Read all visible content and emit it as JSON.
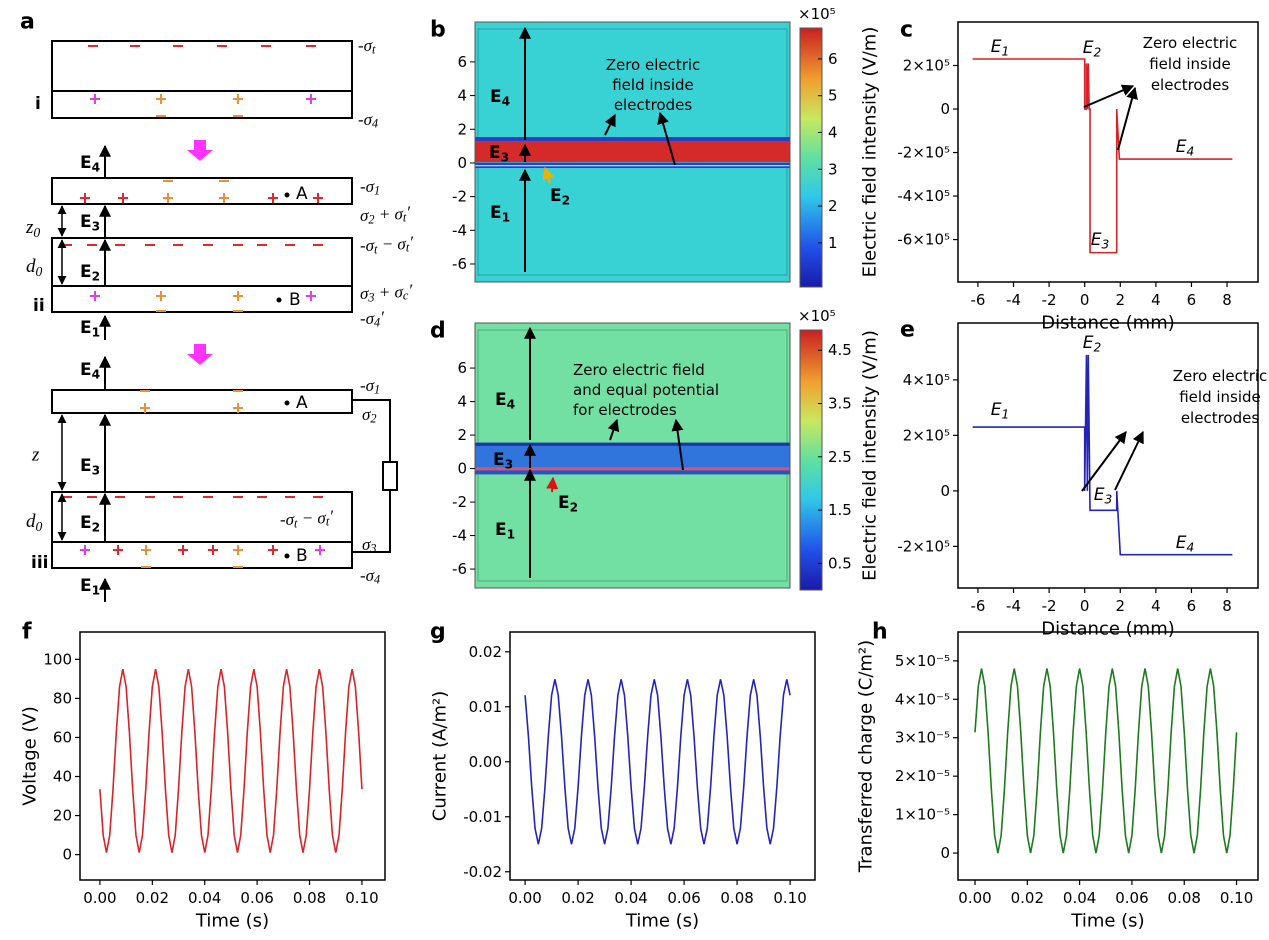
{
  "diagram": {
    "label": "a",
    "steps": [
      "i",
      "ii",
      "iii"
    ],
    "texts": [
      [
        "-σ",
        {
          "sub": "t"
        }
      ],
      [
        "-σ",
        {
          "sub": "4"
        }
      ],
      [
        "E",
        {
          "sub": "4"
        }
      ],
      [
        "-σ",
        {
          "sub": "1"
        }
      ],
      "A",
      [
        "σ",
        {
          "sub": "2"
        },
        " + σ",
        {
          "sub": "t"
        },
        "′"
      ],
      [
        "z",
        {
          "sub": "0"
        }
      ],
      [
        "E",
        {
          "sub": "3"
        }
      ],
      [
        "-σ",
        {
          "sub": "t"
        },
        " − σ",
        {
          "sub": "t"
        },
        "′"
      ],
      [
        "d",
        {
          "sub": "0"
        }
      ],
      [
        "E",
        {
          "sub": "2"
        }
      ],
      [
        "σ",
        {
          "sub": "3"
        },
        " + σ",
        {
          "sub": "c"
        },
        "′"
      ],
      "B",
      [
        "-σ",
        {
          "sub": "4"
        },
        "′"
      ],
      [
        "E",
        {
          "sub": "1"
        }
      ],
      [
        "E",
        {
          "sub": "4"
        }
      ],
      [
        "-σ",
        {
          "sub": "1"
        }
      ],
      "A",
      [
        "σ",
        {
          "sub": "2"
        }
      ],
      "z",
      [
        "E",
        {
          "sub": "3"
        }
      ],
      [
        "-σ",
        {
          "sub": "t"
        },
        " − σ",
        {
          "sub": "t"
        },
        "′"
      ],
      [
        "d",
        {
          "sub": "0"
        }
      ],
      [
        "E",
        {
          "sub": "2"
        }
      ],
      [
        "σ",
        {
          "sub": "3"
        }
      ],
      "B",
      [
        "-σ",
        {
          "sub": "4"
        }
      ],
      [
        "E",
        {
          "sub": "1"
        }
      ]
    ]
  },
  "fields": [
    {
      "label": "b",
      "ylim": [
        -7.07,
        8.37
      ],
      "yticks": [
        -6,
        -4,
        -2,
        0,
        2,
        4,
        6
      ],
      "colorbar": {
        "clim": [
          -0.2,
          6.84
        ],
        "ticks": [
          1,
          2,
          3,
          4,
          5,
          6
        ],
        "exponent": "×10⁵"
      },
      "labels": [
        [
          "E",
          {
            "sub": "4"
          }
        ],
        [
          "E",
          {
            "sub": "3"
          }
        ],
        [
          "E",
          {
            "sub": "2"
          }
        ],
        [
          "E",
          {
            "sub": "1"
          }
        ]
      ],
      "note": [
        "Zero electric",
        "field inside",
        "electrodes"
      ]
    },
    {
      "label": "d",
      "ylim": [
        -7.13,
        8.69
      ],
      "yticks": [
        -6,
        -4,
        -2,
        0,
        2,
        4,
        6
      ],
      "colorbar": {
        "clim": [
          0,
          4.88
        ],
        "ticks": [
          0.5,
          1.5,
          2.5,
          3.5,
          4.5
        ],
        "exponent": "×10⁵"
      },
      "labels": [
        [
          "E",
          {
            "sub": "4"
          }
        ],
        [
          "E",
          {
            "sub": "3"
          }
        ],
        [
          "E",
          {
            "sub": "2"
          }
        ],
        [
          "E",
          {
            "sub": "1"
          }
        ]
      ],
      "note": [
        "Zero electric field",
        "and equal potential",
        "for electrodes"
      ]
    }
  ],
  "chart_data": [
    {
      "type": "line",
      "label": "c",
      "xlabel": "Distance (mm)",
      "ylabel": "Electric field intensity (V/m)",
      "xlim": [
        -7.12,
        9.74
      ],
      "ylim": [
        -795000,
        400000
      ],
      "xticks": [
        -6,
        -4,
        -2,
        0,
        2,
        4,
        6,
        8
      ],
      "yticks": [
        {
          "value": -600000,
          "label": "-6×10⁵"
        },
        {
          "value": -400000,
          "label": "-4×10⁵"
        },
        {
          "value": -200000,
          "label": "-2×10⁵"
        },
        0,
        {
          "value": 200000,
          "label": "2×10⁵"
        }
      ],
      "x": [
        -6.3,
        0,
        0,
        0.1,
        0.1,
        0.15,
        0.2,
        0.25,
        0.3,
        0.3,
        1.8,
        1.8,
        1.95,
        8.3
      ],
      "series": [
        {
          "color": "#d8232a",
          "values": [
            230000,
            230000,
            0,
            0,
            210000,
            0,
            210000,
            0,
            0,
            -660000,
            -660000,
            0,
            -230000,
            -230000
          ]
        }
      ],
      "annotations": [
        [
          "E",
          {
            "sub": "1"
          }
        ],
        [
          "E",
          {
            "sub": "2"
          }
        ],
        "Zero electric",
        "field inside",
        "electrodes",
        [
          "E",
          {
            "sub": "4"
          }
        ],
        [
          "E",
          {
            "sub": "3"
          }
        ]
      ]
    },
    {
      "type": "line",
      "label": "e",
      "xlabel": "Distance (mm)",
      "ylabel": "Electric field intensity (V/m)",
      "xlim": [
        -7.12,
        9.74
      ],
      "ylim": [
        -350000,
        605000
      ],
      "xticks": [
        -6,
        -4,
        -2,
        0,
        2,
        4,
        6,
        8
      ],
      "yticks": [
        {
          "value": -200000,
          "label": "-2×10⁵"
        },
        0,
        {
          "value": 200000,
          "label": "2×10⁵"
        },
        {
          "value": 400000,
          "label": "4×10⁵"
        }
      ],
      "x": [
        -6.3,
        0,
        0,
        0.1,
        0.15,
        0.2,
        0.3,
        1.8,
        1.8,
        2,
        8.3
      ],
      "series": [
        {
          "color": "#2424b8",
          "values": [
            230000,
            230000,
            0,
            490000,
            0,
            490000,
            -70000,
            -70000,
            0,
            -230000,
            -230000
          ]
        }
      ],
      "annotations": [
        [
          "E",
          {
            "sub": "2"
          }
        ],
        "Zero electric",
        "field inside",
        "electrodes",
        [
          "E",
          {
            "sub": "1"
          }
        ],
        [
          "E",
          {
            "sub": "3"
          }
        ],
        [
          "E",
          {
            "sub": "4"
          }
        ]
      ]
    },
    {
      "type": "line",
      "label": "f",
      "xlabel": "Time (s)",
      "ylabel": "Voltage (V)",
      "xlim": [
        -0.0076,
        0.1088
      ],
      "ylim": [
        -13,
        114
      ],
      "xticks": [
        {
          "value": 0,
          "label": "0.00"
        },
        0.02,
        0.04,
        0.06,
        0.08,
        {
          "value": 0.1,
          "label": "0.10"
        }
      ],
      "yticks": [
        0,
        20,
        40,
        60,
        80,
        100
      ],
      "x": [
        0,
        0.00125,
        0.0025,
        0.00375,
        0.005,
        0.00625,
        0.0075,
        0.00875,
        0.01,
        0.01125,
        0.0125,
        0.01375,
        0.015,
        0.01625,
        0.0175,
        0.01875,
        0.02,
        0.02125,
        0.0225,
        0.02375,
        0.025,
        0.02625,
        0.0275,
        0.02875,
        0.03,
        0.03125,
        0.0325,
        0.03375,
        0.035,
        0.03625,
        0.0375,
        0.03875,
        0.04,
        0.04125,
        0.0425,
        0.04375,
        0.045,
        0.04625,
        0.0475,
        0.04875,
        0.05,
        0.05125,
        0.0525,
        0.05375,
        0.055,
        0.05625,
        0.0575,
        0.05875,
        0.06,
        0.06125,
        0.0625,
        0.06375,
        0.065,
        0.06625,
        0.0675,
        0.06875,
        0.07,
        0.07125,
        0.0725,
        0.07375,
        0.075,
        0.07625,
        0.0775,
        0.07875,
        0.08,
        0.08125,
        0.0825,
        0.08375,
        0.085,
        0.08625,
        0.0875,
        0.08875,
        0.09,
        0.09125,
        0.0925,
        0.09375,
        0.095,
        0.09625,
        0.0975,
        0.09875,
        0.1
      ],
      "series": [
        {
          "color": "#d8232a",
          "values": [
            33.5,
            10,
            1,
            10,
            33.5,
            62.5,
            86,
            95,
            86,
            62.5,
            33.5,
            10,
            1,
            10,
            33.5,
            62.5,
            86,
            95,
            86,
            62.5,
            33.5,
            10,
            1,
            10,
            33.5,
            62.5,
            86,
            95,
            86,
            62.5,
            33.5,
            10,
            1,
            10,
            33.5,
            62.5,
            86,
            95,
            86,
            62.5,
            33.5,
            10,
            1,
            10,
            33.5,
            62.5,
            86,
            95,
            86,
            62.5,
            33.5,
            10,
            1,
            10,
            33.5,
            62.5,
            86,
            95,
            86,
            62.5,
            33.5,
            10,
            1,
            10,
            33.5,
            62.5,
            86,
            95,
            86,
            62.5,
            33.5,
            10,
            1,
            10,
            33.5,
            62.5,
            86,
            95,
            86,
            62.5,
            33.5
          ]
        }
      ]
    },
    {
      "type": "line",
      "label": "g",
      "xlabel": "Time (s)",
      "ylabel": "Current (A/m²)",
      "xlim": [
        -0.0057,
        0.1094
      ],
      "ylim": [
        -0.0215,
        0.0236
      ],
      "xticks": [
        {
          "value": 0,
          "label": "0.00"
        },
        0.02,
        0.04,
        0.06,
        0.08,
        {
          "value": 0.1,
          "label": "0.10"
        }
      ],
      "yticks": [
        -0.02,
        -0.01,
        {
          "value": 0,
          "label": "0.00"
        },
        0.01,
        0.02
      ],
      "x": [
        0,
        0.00125,
        0.0025,
        0.00375,
        0.005,
        0.00625,
        0.0075,
        0.00875,
        0.01,
        0.01125,
        0.0125,
        0.01375,
        0.015,
        0.01625,
        0.0175,
        0.01875,
        0.02,
        0.02125,
        0.0225,
        0.02375,
        0.025,
        0.02625,
        0.0275,
        0.02875,
        0.03,
        0.03125,
        0.0325,
        0.03375,
        0.035,
        0.03625,
        0.0375,
        0.03875,
        0.04,
        0.04125,
        0.0425,
        0.04375,
        0.045,
        0.04625,
        0.0475,
        0.04875,
        0.05,
        0.05125,
        0.0525,
        0.05375,
        0.055,
        0.05625,
        0.0575,
        0.05875,
        0.06,
        0.06125,
        0.0625,
        0.06375,
        0.065,
        0.06625,
        0.0675,
        0.06875,
        0.07,
        0.07125,
        0.0725,
        0.07375,
        0.075,
        0.07625,
        0.0775,
        0.07875,
        0.08,
        0.08125,
        0.0825,
        0.08375,
        0.085,
        0.08625,
        0.0875,
        0.08875,
        0.09,
        0.09125,
        0.0925,
        0.09375,
        0.095,
        0.09625,
        0.0975,
        0.09875,
        0.1
      ],
      "series": [
        {
          "color": "#2424b8",
          "values": [
            0.0121,
            0.0046,
            -0.0046,
            -0.0121,
            -0.015,
            -0.0121,
            -0.0046,
            0.0046,
            0.0121,
            0.015,
            0.0121,
            0.0046,
            -0.0046,
            -0.0121,
            -0.015,
            -0.0121,
            -0.0046,
            0.0046,
            0.0121,
            0.015,
            0.0121,
            0.0046,
            -0.0046,
            -0.0121,
            -0.015,
            -0.0121,
            -0.0046,
            0.0046,
            0.0121,
            0.015,
            0.0121,
            0.0046,
            -0.0046,
            -0.0121,
            -0.015,
            -0.0121,
            -0.0046,
            0.0046,
            0.0121,
            0.015,
            0.0121,
            0.0046,
            -0.0046,
            -0.0121,
            -0.015,
            -0.0121,
            -0.0046,
            0.0046,
            0.0121,
            0.015,
            0.0121,
            0.0046,
            -0.0046,
            -0.0121,
            -0.015,
            -0.0121,
            -0.0046,
            0.0046,
            0.0121,
            0.015,
            0.0121,
            0.0046,
            -0.0046,
            -0.0121,
            -0.015,
            -0.0121,
            -0.0046,
            0.0046,
            0.0121,
            0.015,
            0.0121,
            0.0046,
            -0.0046,
            -0.0121,
            -0.015,
            -0.0121,
            -0.0046,
            0.0046,
            0.0121,
            0.015,
            0.0121
          ]
        }
      ]
    },
    {
      "type": "line",
      "label": "h",
      "xlabel": "Time (s)",
      "ylabel": "Transferred charge (C/m²)",
      "xlim": [
        -0.0065,
        0.1082
      ],
      "ylim": [
        -7e-06,
        5.75e-05
      ],
      "xticks": [
        {
          "value": 0,
          "label": "0.00"
        },
        0.02,
        0.04,
        0.06,
        0.08,
        {
          "value": 0.1,
          "label": "0.10"
        }
      ],
      "yticks": [
        0,
        {
          "value": 1e-05,
          "label": "1×10⁻⁵"
        },
        {
          "value": 2e-05,
          "label": "2×10⁻⁵"
        },
        {
          "value": 3e-05,
          "label": "3×10⁻⁵"
        },
        {
          "value": 4e-05,
          "label": "4×10⁻⁵"
        },
        {
          "value": 5e-05,
          "label": "5×10⁻⁵"
        }
      ],
      "x": [
        0,
        0.00125,
        0.0025,
        0.00375,
        0.005,
        0.00625,
        0.0075,
        0.00875,
        0.01,
        0.01125,
        0.0125,
        0.01375,
        0.015,
        0.01625,
        0.0175,
        0.01875,
        0.02,
        0.02125,
        0.0225,
        0.02375,
        0.025,
        0.02625,
        0.0275,
        0.02875,
        0.03,
        0.03125,
        0.0325,
        0.03375,
        0.035,
        0.03625,
        0.0375,
        0.03875,
        0.04,
        0.04125,
        0.0425,
        0.04375,
        0.045,
        0.04625,
        0.0475,
        0.04875,
        0.05,
        0.05125,
        0.0525,
        0.05375,
        0.055,
        0.05625,
        0.0575,
        0.05875,
        0.06,
        0.06125,
        0.0625,
        0.06375,
        0.065,
        0.06625,
        0.0675,
        0.06875,
        0.07,
        0.07125,
        0.0725,
        0.07375,
        0.075,
        0.07625,
        0.0775,
        0.07875,
        0.08,
        0.08125,
        0.0825,
        0.08375,
        0.085,
        0.08625,
        0.0875,
        0.08875,
        0.09,
        0.09125,
        0.0925,
        0.09375,
        0.095,
        0.09625,
        0.0975,
        0.09875,
        0.1
      ],
      "series": [
        {
          "color": "#1e7a1e",
          "values": [
            3.14e-05,
            4.34e-05,
            4.8e-05,
            4.34e-05,
            3.14e-05,
            1.66e-05,
            4.6e-06,
            0,
            4.6e-06,
            1.66e-05,
            3.14e-05,
            4.34e-05,
            4.8e-05,
            4.34e-05,
            3.14e-05,
            1.66e-05,
            4.6e-06,
            0,
            4.6e-06,
            1.66e-05,
            3.14e-05,
            4.34e-05,
            4.8e-05,
            4.34e-05,
            3.14e-05,
            1.66e-05,
            4.6e-06,
            0,
            4.6e-06,
            1.66e-05,
            3.14e-05,
            4.34e-05,
            4.8e-05,
            4.34e-05,
            3.14e-05,
            1.66e-05,
            4.6e-06,
            0,
            4.6e-06,
            1.66e-05,
            3.14e-05,
            4.34e-05,
            4.8e-05,
            4.34e-05,
            3.14e-05,
            1.66e-05,
            4.6e-06,
            0,
            4.6e-06,
            1.66e-05,
            3.14e-05,
            4.34e-05,
            4.8e-05,
            4.34e-05,
            3.14e-05,
            1.66e-05,
            4.6e-06,
            0,
            4.6e-06,
            1.66e-05,
            3.14e-05,
            4.34e-05,
            4.8e-05,
            4.34e-05,
            3.14e-05,
            1.66e-05,
            4.6e-06,
            0,
            4.6e-06,
            1.66e-05,
            3.14e-05,
            4.34e-05,
            4.8e-05,
            4.34e-05,
            3.14e-05,
            1.66e-05,
            4.6e-06,
            0,
            4.6e-06,
            1.66e-05,
            3.14e-05
          ]
        }
      ]
    }
  ]
}
